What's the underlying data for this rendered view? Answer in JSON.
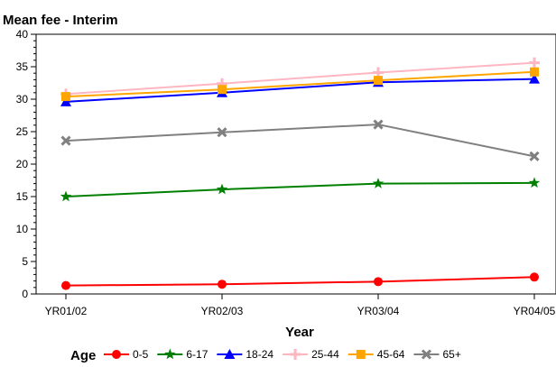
{
  "chart_data": {
    "type": "line",
    "title": "Mean fee - Interim",
    "xlabel": "Year",
    "ylabel": "",
    "categories": [
      "YR01/02",
      "YR02/03",
      "YR03/04",
      "YR04/05"
    ],
    "ylim": [
      0,
      40
    ],
    "yticks": [
      0,
      5,
      10,
      15,
      20,
      25,
      30,
      35,
      40
    ],
    "legend_title": "Age",
    "legend_position": "bottom",
    "series": [
      {
        "name": "0-5",
        "color": "#ff0000",
        "marker": "circle",
        "values": [
          1.3,
          1.5,
          1.9,
          2.6
        ]
      },
      {
        "name": "6-17",
        "color": "#008000",
        "marker": "star",
        "values": [
          15.0,
          16.1,
          17.0,
          17.1
        ]
      },
      {
        "name": "18-24",
        "color": "#0000ff",
        "marker": "triangle",
        "values": [
          29.6,
          31.0,
          32.6,
          33.1
        ]
      },
      {
        "name": "25-44",
        "color": "#ffb6c1",
        "marker": "plus",
        "values": [
          30.8,
          32.4,
          34.1,
          35.6
        ]
      },
      {
        "name": "45-64",
        "color": "#ffa500",
        "marker": "square",
        "values": [
          30.4,
          31.5,
          32.9,
          34.2
        ]
      },
      {
        "name": "65+",
        "color": "#808080",
        "marker": "x",
        "values": [
          23.6,
          24.9,
          26.1,
          21.2
        ]
      }
    ]
  }
}
